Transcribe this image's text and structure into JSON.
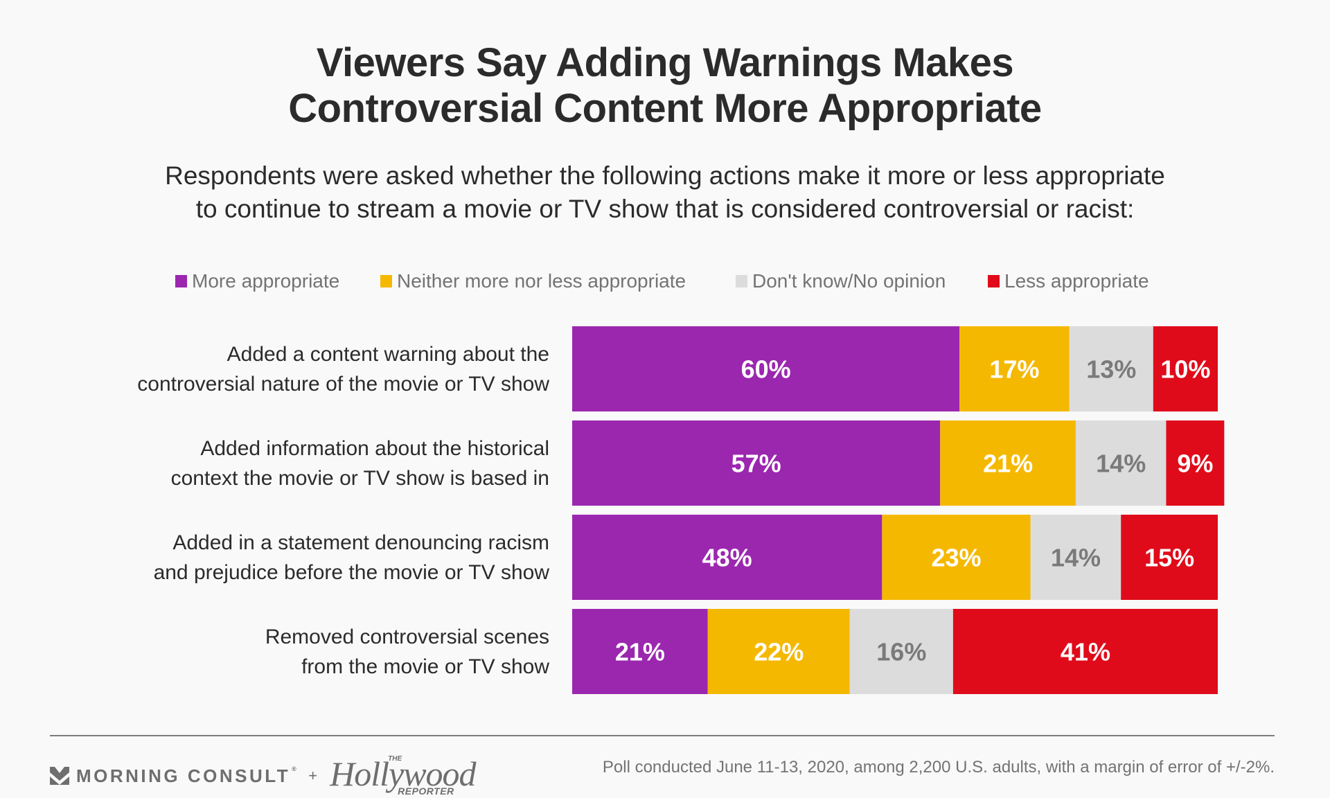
{
  "chart_data": {
    "type": "bar",
    "orientation": "horizontal",
    "stacked": true,
    "title": "Viewers Say Adding Warnings Makes Controversial Content More Appropriate",
    "title_lines": [
      "Viewers Say Adding Warnings Makes",
      "Controversial Content More Appropriate"
    ],
    "subtitle_lines": [
      "Respondents were asked whether the following actions make it more or less appropriate",
      "to continue to stream a movie or TV show that is considered controversial or racist:"
    ],
    "xlabel": "",
    "ylabel": "",
    "xlim": [
      0,
      100
    ],
    "grid": false,
    "legend_position": "top-center",
    "categories": [
      [
        "Added a content warning about the",
        "controversial nature of the movie or TV show"
      ],
      [
        "Added information about the historical",
        "context the movie or TV show is based in"
      ],
      [
        "Added in a statement denouncing racism",
        "and prejudice before the movie or TV show"
      ],
      [
        "Removed controversial scenes",
        "from the movie or TV show"
      ]
    ],
    "series": [
      {
        "name": "More appropriate",
        "color": "#9b27af",
        "label_color": "#ffffff",
        "values": [
          60,
          57,
          48,
          21
        ]
      },
      {
        "name": "Neither more nor less appropriate",
        "color": "#f5b800",
        "label_color": "#ffffff",
        "values": [
          17,
          21,
          23,
          22
        ]
      },
      {
        "name": "Don't know/No opinion",
        "color": "#dcdcdc",
        "label_color": "#7a7a7a",
        "values": [
          13,
          14,
          14,
          16
        ]
      },
      {
        "name": "Less appropriate",
        "color": "#e00b1a",
        "label_color": "#ffffff",
        "values": [
          10,
          9,
          15,
          41
        ]
      }
    ],
    "value_suffix": "%"
  },
  "footer": {
    "brand1": "MORNING CONSULT",
    "brand1_mark": "®",
    "plus": "+",
    "brand2_the": "THE",
    "brand2_main": "Hollywood",
    "brand2_sub": "REPORTER",
    "note": "Poll conducted June 11-13, 2020, among 2,200 U.S. adults, with a margin of error of +/-2%."
  }
}
